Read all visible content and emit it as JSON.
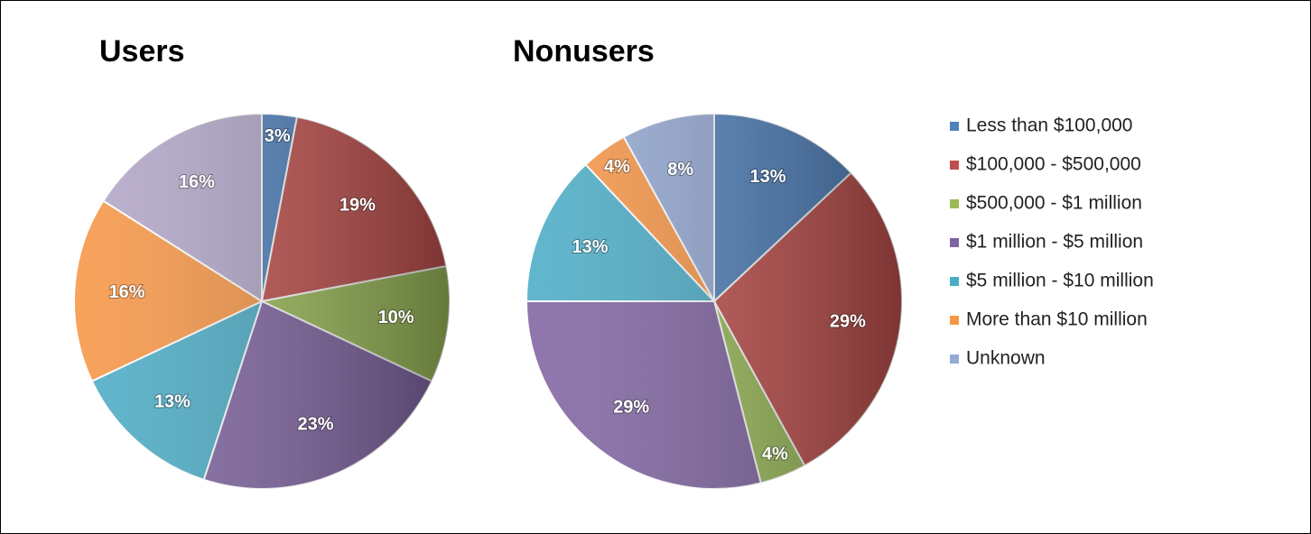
{
  "chart_data": [
    {
      "type": "pie",
      "title": "Users",
      "categories": [
        "Less than $100,000",
        "$100,000 - $500,000",
        "$500,000 - $1 million",
        "$1 million - $5 million",
        "$5 million - $10 million",
        "More than $10 million",
        "Unknown"
      ],
      "values": [
        3,
        19,
        10,
        23,
        13,
        16,
        16
      ],
      "value_labels": [
        "3%",
        "19%",
        "10%",
        "23%",
        "13%",
        "16%",
        "16%"
      ],
      "colors": [
        "#4f81bd",
        "#c0504d",
        "#9bbb59",
        "#8064a2",
        "#4bacc6",
        "#f79646",
        "#b3a7c9"
      ]
    },
    {
      "type": "pie",
      "title": "Nonusers",
      "categories": [
        "Less than $100,000",
        "$100,000 - $500,000",
        "$500,000 - $1 million",
        "$1 million - $5 million",
        "$5 million - $10 million",
        "More than $10 million",
        "Unknown"
      ],
      "values": [
        13,
        29,
        4,
        29,
        13,
        4,
        8
      ],
      "value_labels": [
        "13%",
        "29%",
        "4%",
        "29%",
        "13%",
        "4%",
        "8%"
      ],
      "colors": [
        "#4f81bd",
        "#c0504d",
        "#9bbb59",
        "#8064a2",
        "#4bacc6",
        "#f79646",
        "#95a9d4"
      ],
      "legend": "right"
    }
  ]
}
